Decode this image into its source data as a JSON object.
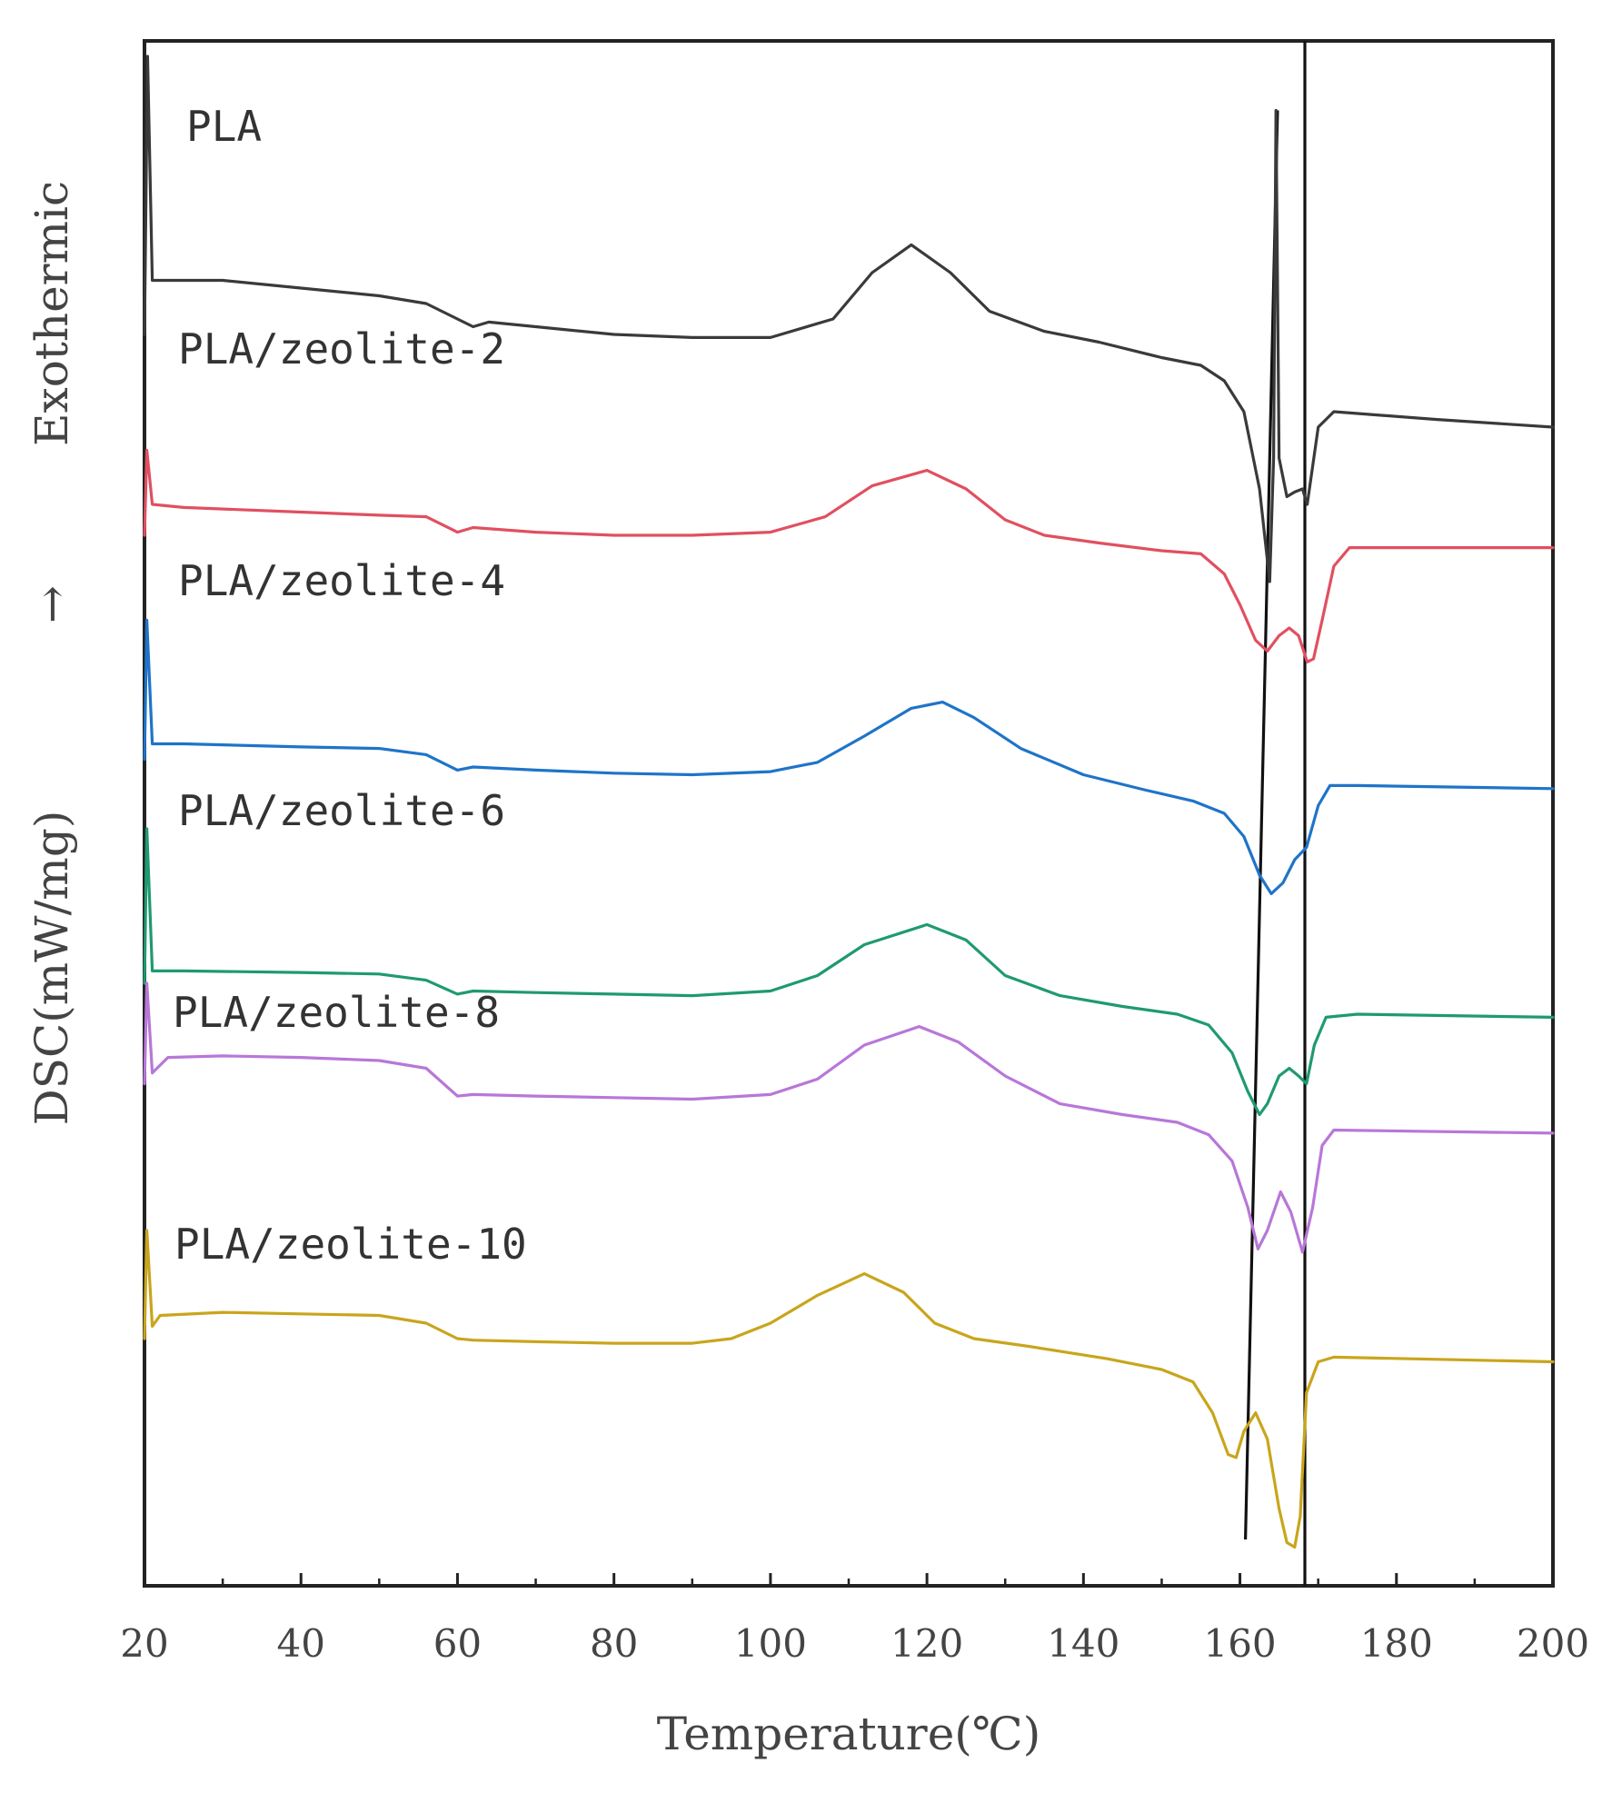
{
  "chart_data": {
    "type": "line",
    "title": "",
    "xlabel": "Temperature(℃)",
    "ylabel": "DSC(mW/mg)",
    "ylabel_direction": "Exothermic",
    "ylabel_arrow": "→",
    "xlim": [
      20,
      200
    ],
    "x_ticks": [
      20,
      40,
      60,
      80,
      100,
      120,
      140,
      160,
      180,
      200
    ],
    "y_units": "stacked curves, arbitrary offset; higher = exothermic",
    "ylim": [
      0,
      10
    ],
    "grid": false,
    "reference_lines": [
      {
        "name": "trend-line-lower-peak",
        "points": [
          [
            160.7,
            0.3
          ],
          [
            164.8,
            9.55
          ]
        ]
      },
      {
        "name": "vertical-line-upper-peak",
        "points": [
          [
            168.3,
            0.0
          ],
          [
            168.3,
            10.0
          ]
        ]
      }
    ],
    "series": [
      {
        "name": "PLA",
        "color": "#3a3a3a",
        "points": [
          [
            20,
            8.1
          ],
          [
            20.4,
            9.9
          ],
          [
            21,
            8.45
          ],
          [
            30,
            8.45
          ],
          [
            40,
            8.4
          ],
          [
            50,
            8.35
          ],
          [
            56,
            8.3
          ],
          [
            62,
            8.15
          ],
          [
            64,
            8.18
          ],
          [
            70,
            8.15
          ],
          [
            80,
            8.1
          ],
          [
            90,
            8.08
          ],
          [
            100,
            8.08
          ],
          [
            108,
            8.2
          ],
          [
            113,
            8.5
          ],
          [
            118,
            8.68
          ],
          [
            123,
            8.5
          ],
          [
            128,
            8.25
          ],
          [
            135,
            8.12
          ],
          [
            142,
            8.05
          ],
          [
            150,
            7.95
          ],
          [
            155,
            7.9
          ],
          [
            158,
            7.8
          ],
          [
            160.5,
            7.6
          ],
          [
            162.5,
            7.1
          ],
          [
            163.8,
            6.5
          ],
          [
            164.3,
            7.3
          ],
          [
            164.6,
            9.55
          ],
          [
            165,
            7.3
          ],
          [
            166,
            7.05
          ],
          [
            167,
            7.08
          ],
          [
            168,
            7.1
          ],
          [
            168.6,
            7.0
          ],
          [
            170,
            7.5
          ],
          [
            172,
            7.6
          ],
          [
            185,
            7.55
          ],
          [
            200,
            7.5
          ]
        ]
      },
      {
        "name": "PLA/zeolite-2",
        "color": "#e05060",
        "points": [
          [
            20,
            6.8
          ],
          [
            20.3,
            7.35
          ],
          [
            21,
            7.0
          ],
          [
            25,
            6.98
          ],
          [
            40,
            6.95
          ],
          [
            50,
            6.93
          ],
          [
            56,
            6.92
          ],
          [
            60,
            6.82
          ],
          [
            62,
            6.85
          ],
          [
            70,
            6.82
          ],
          [
            80,
            6.8
          ],
          [
            90,
            6.8
          ],
          [
            100,
            6.82
          ],
          [
            107,
            6.92
          ],
          [
            113,
            7.12
          ],
          [
            120,
            7.22
          ],
          [
            125,
            7.1
          ],
          [
            130,
            6.9
          ],
          [
            135,
            6.8
          ],
          [
            142,
            6.75
          ],
          [
            150,
            6.7
          ],
          [
            155,
            6.68
          ],
          [
            158,
            6.55
          ],
          [
            160,
            6.35
          ],
          [
            162,
            6.12
          ],
          [
            163.5,
            6.05
          ],
          [
            165,
            6.15
          ],
          [
            166.3,
            6.2
          ],
          [
            167.5,
            6.15
          ],
          [
            168.6,
            5.98
          ],
          [
            169.4,
            6.0
          ],
          [
            170.5,
            6.25
          ],
          [
            172,
            6.6
          ],
          [
            174,
            6.72
          ],
          [
            185,
            6.72
          ],
          [
            200,
            6.72
          ]
        ]
      },
      {
        "name": "PLA/zeolite-4",
        "color": "#1f74c8",
        "points": [
          [
            20,
            5.35
          ],
          [
            20.3,
            6.25
          ],
          [
            21,
            5.45
          ],
          [
            25,
            5.45
          ],
          [
            40,
            5.43
          ],
          [
            50,
            5.42
          ],
          [
            56,
            5.38
          ],
          [
            60,
            5.28
          ],
          [
            62,
            5.3
          ],
          [
            70,
            5.28
          ],
          [
            80,
            5.26
          ],
          [
            90,
            5.25
          ],
          [
            100,
            5.27
          ],
          [
            106,
            5.33
          ],
          [
            112,
            5.5
          ],
          [
            118,
            5.68
          ],
          [
            122,
            5.72
          ],
          [
            126,
            5.62
          ],
          [
            132,
            5.42
          ],
          [
            140,
            5.25
          ],
          [
            148,
            5.15
          ],
          [
            154,
            5.08
          ],
          [
            158,
            5.0
          ],
          [
            160.5,
            4.85
          ],
          [
            162.5,
            4.6
          ],
          [
            164,
            4.48
          ],
          [
            165.5,
            4.55
          ],
          [
            167,
            4.7
          ],
          [
            168.5,
            4.78
          ],
          [
            170,
            5.05
          ],
          [
            171.5,
            5.18
          ],
          [
            175,
            5.18
          ],
          [
            200,
            5.16
          ]
        ]
      },
      {
        "name": "PLA/zeolite-6",
        "color": "#1f9a70",
        "points": [
          [
            20,
            3.9
          ],
          [
            20.3,
            4.9
          ],
          [
            21,
            3.98
          ],
          [
            25,
            3.98
          ],
          [
            40,
            3.97
          ],
          [
            50,
            3.96
          ],
          [
            56,
            3.92
          ],
          [
            60,
            3.83
          ],
          [
            62,
            3.85
          ],
          [
            70,
            3.84
          ],
          [
            80,
            3.83
          ],
          [
            90,
            3.82
          ],
          [
            100,
            3.85
          ],
          [
            106,
            3.95
          ],
          [
            112,
            4.15
          ],
          [
            120,
            4.28
          ],
          [
            125,
            4.18
          ],
          [
            130,
            3.95
          ],
          [
            137,
            3.82
          ],
          [
            145,
            3.75
          ],
          [
            152,
            3.7
          ],
          [
            156,
            3.63
          ],
          [
            159,
            3.45
          ],
          [
            161,
            3.2
          ],
          [
            162.5,
            3.05
          ],
          [
            163.5,
            3.12
          ],
          [
            165,
            3.3
          ],
          [
            166.3,
            3.35
          ],
          [
            167.5,
            3.3
          ],
          [
            168.5,
            3.25
          ],
          [
            169.5,
            3.5
          ],
          [
            171,
            3.68
          ],
          [
            175,
            3.7
          ],
          [
            200,
            3.68
          ]
        ]
      },
      {
        "name": "PLA/zeolite-8",
        "color": "#b877d8",
        "points": [
          [
            20,
            3.25
          ],
          [
            20.3,
            3.9
          ],
          [
            21,
            3.32
          ],
          [
            23,
            3.42
          ],
          [
            30,
            3.43
          ],
          [
            40,
            3.42
          ],
          [
            50,
            3.4
          ],
          [
            56,
            3.35
          ],
          [
            60,
            3.17
          ],
          [
            62,
            3.18
          ],
          [
            70,
            3.17
          ],
          [
            80,
            3.16
          ],
          [
            90,
            3.15
          ],
          [
            100,
            3.18
          ],
          [
            106,
            3.28
          ],
          [
            112,
            3.5
          ],
          [
            119,
            3.62
          ],
          [
            124,
            3.52
          ],
          [
            130,
            3.3
          ],
          [
            137,
            3.12
          ],
          [
            145,
            3.05
          ],
          [
            152,
            3.0
          ],
          [
            156,
            2.92
          ],
          [
            159,
            2.75
          ],
          [
            161,
            2.45
          ],
          [
            162.3,
            2.18
          ],
          [
            163.5,
            2.3
          ],
          [
            165.2,
            2.55
          ],
          [
            166.5,
            2.42
          ],
          [
            168,
            2.16
          ],
          [
            169.3,
            2.45
          ],
          [
            170.5,
            2.85
          ],
          [
            172,
            2.95
          ],
          [
            200,
            2.93
          ]
        ]
      },
      {
        "name": "PLA/zeolite-10",
        "color": "#c9a51d",
        "points": [
          [
            20,
            1.6
          ],
          [
            20.3,
            2.3
          ],
          [
            21,
            1.68
          ],
          [
            22,
            1.75
          ],
          [
            30,
            1.77
          ],
          [
            40,
            1.76
          ],
          [
            50,
            1.75
          ],
          [
            56,
            1.7
          ],
          [
            60,
            1.6
          ],
          [
            62,
            1.59
          ],
          [
            70,
            1.58
          ],
          [
            80,
            1.57
          ],
          [
            90,
            1.57
          ],
          [
            95,
            1.6
          ],
          [
            100,
            1.7
          ],
          [
            106,
            1.88
          ],
          [
            112,
            2.02
          ],
          [
            117,
            1.9
          ],
          [
            121,
            1.7
          ],
          [
            126,
            1.6
          ],
          [
            133,
            1.55
          ],
          [
            143,
            1.47
          ],
          [
            150,
            1.4
          ],
          [
            154,
            1.32
          ],
          [
            156.5,
            1.12
          ],
          [
            158.5,
            0.85
          ],
          [
            159.5,
            0.83
          ],
          [
            160.5,
            1.0
          ],
          [
            162,
            1.12
          ],
          [
            163.5,
            0.95
          ],
          [
            165,
            0.5
          ],
          [
            166,
            0.28
          ],
          [
            167,
            0.25
          ],
          [
            167.7,
            0.45
          ],
          [
            168.5,
            1.25
          ],
          [
            170,
            1.45
          ],
          [
            172,
            1.48
          ],
          [
            200,
            1.45
          ]
        ]
      }
    ]
  }
}
